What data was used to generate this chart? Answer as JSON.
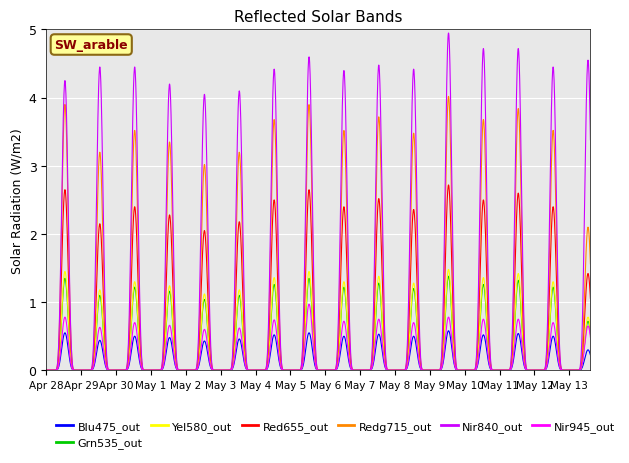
{
  "title": "Reflected Solar Bands",
  "ylabel": "Solar Radiation (W/m2)",
  "annotation_text": "SW_arable",
  "annotation_color": "#8B0000",
  "annotation_bg": "#FFFF99",
  "annotation_border": "#8B6914",
  "ylim": [
    0,
    5.0
  ],
  "num_days": 16,
  "series_order": [
    "Blu475_out",
    "Grn535_out",
    "Yel580_out",
    "Red655_out",
    "Redg715_out",
    "Nir840_out",
    "Nir945_out"
  ],
  "series_colors": {
    "Blu475_out": "#0000FF",
    "Grn535_out": "#00CC00",
    "Yel580_out": "#FFFF00",
    "Red655_out": "#FF0000",
    "Redg715_out": "#FF8800",
    "Nir840_out": "#CC00FF",
    "Nir945_out": "#FF00FF"
  },
  "series_peaks": {
    "Blu475_out": [
      0.55,
      0.44,
      0.5,
      0.48,
      0.43,
      0.46,
      0.52,
      0.55,
      0.5,
      0.53,
      0.5,
      0.58,
      0.52,
      0.54,
      0.5,
      0.3
    ],
    "Grn535_out": [
      1.35,
      1.1,
      1.22,
      1.16,
      1.04,
      1.1,
      1.26,
      1.35,
      1.22,
      1.28,
      1.2,
      1.38,
      1.26,
      1.32,
      1.22,
      0.72
    ],
    "Yel580_out": [
      1.45,
      1.18,
      1.3,
      1.24,
      1.12,
      1.18,
      1.36,
      1.45,
      1.3,
      1.38,
      1.28,
      1.48,
      1.36,
      1.42,
      1.3,
      0.78
    ],
    "Red655_out": [
      2.65,
      2.15,
      2.4,
      2.28,
      2.05,
      2.18,
      2.5,
      2.65,
      2.4,
      2.52,
      2.36,
      2.72,
      2.5,
      2.6,
      2.4,
      1.42
    ],
    "Redg715_out": [
      3.9,
      3.2,
      3.52,
      3.35,
      3.02,
      3.2,
      3.68,
      3.9,
      3.52,
      3.72,
      3.48,
      4.02,
      3.68,
      3.84,
      3.52,
      2.1
    ],
    "Nir840_out": [
      4.25,
      4.45,
      4.45,
      4.2,
      4.05,
      4.1,
      4.42,
      4.6,
      4.4,
      4.48,
      4.42,
      4.95,
      4.72,
      4.72,
      4.45,
      4.55
    ],
    "Nir945_out": [
      0.78,
      0.63,
      0.7,
      0.66,
      0.6,
      0.62,
      0.74,
      0.97,
      0.72,
      0.75,
      0.7,
      0.78,
      0.75,
      0.75,
      0.7,
      0.65
    ]
  },
  "x_tick_labels": [
    "Apr 28",
    "Apr 29",
    "Apr 30",
    "May 1",
    "May 2",
    "May 3",
    "May 4",
    "May 5",
    "May 6",
    "May 7",
    "May 8",
    "May 9",
    "May 10",
    "May 11",
    "May 12",
    "May 13"
  ],
  "bg_color": "#E8E8E8",
  "grid_color": "#FFFFFF"
}
